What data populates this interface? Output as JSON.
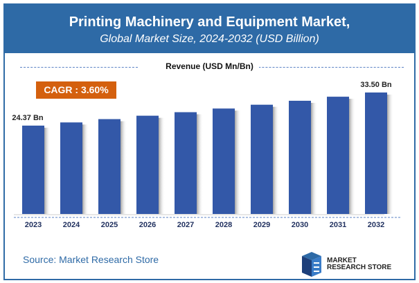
{
  "header": {
    "title": "Printing Machinery and Equipment Market,",
    "subtitle": "Global Market Size, 2024-2032 (USD Billion)"
  },
  "cagr_label": "CAGR : 3.60%",
  "source": "Source: Market Research Store",
  "logo": {
    "line1": "MARKET",
    "line2": "RESEARCH STORE"
  },
  "colors": {
    "header": "#2e6aa6",
    "bar": "#3358a8",
    "cagr": "#d4600e"
  },
  "chart_data": {
    "type": "bar",
    "title": "Revenue (USD Mn/Bn)",
    "categories": [
      "2023",
      "2024",
      "2025",
      "2026",
      "2027",
      "2028",
      "2029",
      "2030",
      "2031",
      "2032"
    ],
    "values": [
      24.37,
      25.25,
      26.16,
      27.1,
      28.07,
      29.08,
      30.13,
      31.22,
      32.34,
      33.5
    ],
    "data_labels": {
      "0": "24.37 Bn",
      "9": "33.50 Bn"
    },
    "ylim": [
      0,
      33.5
    ],
    "grid": false
  }
}
